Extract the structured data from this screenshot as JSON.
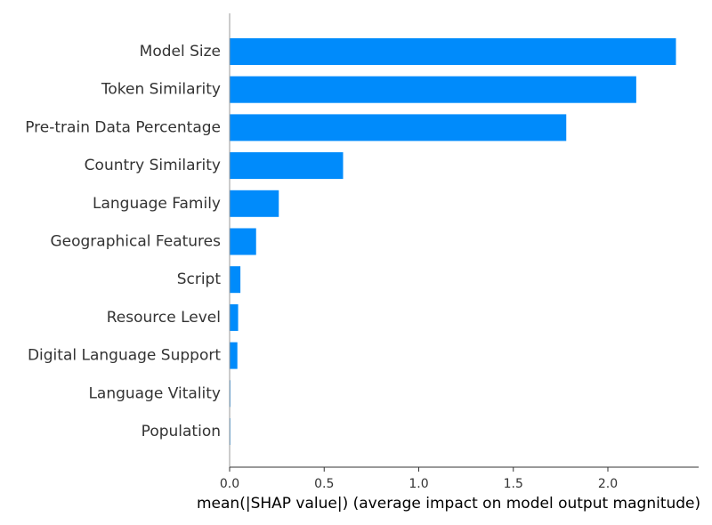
{
  "chart_data": {
    "type": "bar",
    "orientation": "horizontal",
    "categories": [
      "Model Size",
      "Token Similarity",
      "Pre-train Data Percentage",
      "Country Similarity",
      "Language Family",
      "Geographical Features",
      "Script",
      "Resource Level",
      "Digital Language Support",
      "Language Vitality",
      "Population"
    ],
    "values": [
      2.36,
      2.15,
      1.78,
      0.6,
      0.26,
      0.14,
      0.057,
      0.045,
      0.041,
      0.004,
      0.003
    ],
    "title": "",
    "xlabel": "mean(|SHAP value|) (average impact on model output magnitude)",
    "ylabel": "",
    "xlim": [
      0,
      2.48
    ],
    "xticks": [
      0.0,
      0.5,
      1.0,
      1.5,
      2.0
    ],
    "xtick_labels": [
      "0.0",
      "0.5",
      "1.0",
      "1.5",
      "2.0"
    ],
    "grid": false,
    "legend": "none",
    "bar_color": "#008bfb",
    "axis_color": "#333333"
  }
}
